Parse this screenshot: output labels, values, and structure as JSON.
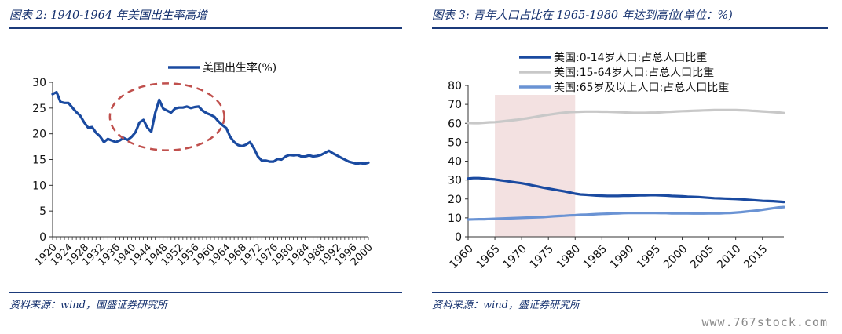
{
  "panels": [
    {
      "title": "图表 2:  1940-1964 年美国出生率高增",
      "source": "资料来源：wind，国盛证券研究所"
    },
    {
      "title": "图表 3:  青年人口占比在 1965-1980 年达到高位(单位：%)",
      "source": "资料来源：wind，盛证券研究所"
    }
  ],
  "watermark": "www.767stock.com",
  "chart_data": [
    {
      "type": "line",
      "title": "",
      "xlabel": "",
      "ylabel": "",
      "xlim": [
        1920,
        2000
      ],
      "ylim": [
        0,
        30
      ],
      "yticks": [
        0,
        5,
        10,
        15,
        20,
        25,
        30
      ],
      "xticks": [
        1920,
        1924,
        1928,
        1932,
        1936,
        1940,
        1944,
        1948,
        1952,
        1956,
        1960,
        1964,
        1968,
        1972,
        1976,
        1980,
        1984,
        1988,
        1992,
        1996,
        2000
      ],
      "legend_position": "top-center",
      "annotation": "dashed red ellipse highlighting 1940-1964",
      "series": [
        {
          "name": "美国出生率(%)",
          "color": "#1a4aa0",
          "x": [
            1920,
            1921,
            1922,
            1923,
            1924,
            1925,
            1926,
            1927,
            1928,
            1929,
            1930,
            1931,
            1932,
            1933,
            1934,
            1935,
            1936,
            1937,
            1938,
            1939,
            1940,
            1941,
            1942,
            1943,
            1944,
            1945,
            1946,
            1947,
            1948,
            1949,
            1950,
            1951,
            1952,
            1953,
            1954,
            1955,
            1956,
            1957,
            1958,
            1959,
            1960,
            1961,
            1962,
            1963,
            1964,
            1965,
            1966,
            1967,
            1968,
            1969,
            1970,
            1971,
            1972,
            1973,
            1974,
            1975,
            1976,
            1977,
            1978,
            1979,
            1980,
            1981,
            1982,
            1983,
            1984,
            1985,
            1986,
            1987,
            1988,
            1989,
            1990,
            1991,
            1992,
            1993,
            1994,
            1995,
            1996,
            1997,
            1998,
            1999,
            2000
          ],
          "values": [
            27.7,
            28.1,
            26.2,
            26.0,
            26.0,
            25.1,
            24.2,
            23.5,
            22.2,
            21.2,
            21.3,
            20.2,
            19.5,
            18.4,
            19.0,
            18.7,
            18.4,
            18.7,
            19.2,
            18.8,
            19.4,
            20.3,
            22.2,
            22.7,
            21.2,
            20.4,
            24.1,
            26.6,
            24.9,
            24.5,
            24.1,
            24.9,
            25.1,
            25.1,
            25.3,
            25.0,
            25.2,
            25.3,
            24.5,
            24.0,
            23.7,
            23.3,
            22.4,
            21.7,
            21.1,
            19.4,
            18.4,
            17.8,
            17.6,
            17.9,
            18.4,
            17.2,
            15.6,
            14.8,
            14.8,
            14.6,
            14.6,
            15.1,
            15.0,
            15.6,
            15.9,
            15.8,
            15.9,
            15.6,
            15.6,
            15.8,
            15.6,
            15.7,
            15.9,
            16.3,
            16.7,
            16.2,
            15.8,
            15.4,
            15.0,
            14.6,
            14.4,
            14.2,
            14.3,
            14.2,
            14.4
          ]
        }
      ]
    },
    {
      "type": "line",
      "title": "",
      "xlabel": "",
      "ylabel": "",
      "xlim": [
        1960,
        2019
      ],
      "ylim": [
        0,
        80
      ],
      "yticks": [
        0,
        10,
        20,
        30,
        40,
        50,
        60,
        70,
        80
      ],
      "xticks": [
        1960,
        1965,
        1970,
        1975,
        1980,
        1985,
        1990,
        1995,
        2000,
        2005,
        2010,
        2015
      ],
      "legend_position": "top-left",
      "highlight_region": [
        1965,
        1980
      ],
      "highlight_color": "#f3e1e1",
      "series": [
        {
          "name": "美国:0-14岁人口:占总人口比重",
          "color": "#1a4aa0",
          "x": [
            1960,
            1961,
            1962,
            1963,
            1964,
            1965,
            1966,
            1967,
            1968,
            1969,
            1970,
            1971,
            1972,
            1973,
            1974,
            1975,
            1976,
            1977,
            1978,
            1979,
            1980,
            1981,
            1982,
            1983,
            1984,
            1985,
            1986,
            1987,
            1988,
            1989,
            1990,
            1991,
            1992,
            1993,
            1994,
            1995,
            1996,
            1997,
            1998,
            1999,
            2000,
            2001,
            2002,
            2003,
            2004,
            2005,
            2006,
            2007,
            2008,
            2009,
            2010,
            2011,
            2012,
            2013,
            2014,
            2015,
            2016,
            2017,
            2018,
            2019
          ],
          "values": [
            30.8,
            31.0,
            31.0,
            30.8,
            30.5,
            30.3,
            29.9,
            29.5,
            29.1,
            28.7,
            28.3,
            27.8,
            27.2,
            26.6,
            26.0,
            25.5,
            25.0,
            24.5,
            24.0,
            23.4,
            22.8,
            22.4,
            22.2,
            22.0,
            21.8,
            21.7,
            21.6,
            21.6,
            21.6,
            21.7,
            21.7,
            21.8,
            21.9,
            21.9,
            22.0,
            22.0,
            21.9,
            21.8,
            21.6,
            21.5,
            21.4,
            21.2,
            21.1,
            21.0,
            20.8,
            20.6,
            20.4,
            20.3,
            20.2,
            20.1,
            20.0,
            19.8,
            19.6,
            19.4,
            19.2,
            19.0,
            18.9,
            18.8,
            18.6,
            18.4
          ]
        },
        {
          "name": "美国:15-64岁人口:占总人口比重",
          "color": "#c8c8c8",
          "x": [
            1960,
            1961,
            1962,
            1963,
            1964,
            1965,
            1966,
            1967,
            1968,
            1969,
            1970,
            1971,
            1972,
            1973,
            1974,
            1975,
            1976,
            1977,
            1978,
            1979,
            1980,
            1981,
            1982,
            1983,
            1984,
            1985,
            1986,
            1987,
            1988,
            1989,
            1990,
            1991,
            1992,
            1993,
            1994,
            1995,
            1996,
            1997,
            1998,
            1999,
            2000,
            2001,
            2002,
            2003,
            2004,
            2005,
            2006,
            2007,
            2008,
            2009,
            2010,
            2011,
            2012,
            2013,
            2014,
            2015,
            2016,
            2017,
            2018,
            2019
          ],
          "values": [
            60.2,
            60.1,
            60.1,
            60.3,
            60.5,
            60.6,
            60.9,
            61.2,
            61.5,
            61.8,
            62.2,
            62.6,
            63.1,
            63.6,
            64.1,
            64.5,
            64.9,
            65.3,
            65.6,
            65.9,
            66.0,
            66.1,
            66.2,
            66.2,
            66.2,
            66.1,
            66.1,
            66.0,
            65.9,
            65.8,
            65.6,
            65.5,
            65.5,
            65.5,
            65.6,
            65.6,
            65.8,
            66.0,
            66.1,
            66.3,
            66.4,
            66.5,
            66.6,
            66.7,
            66.8,
            66.9,
            67.0,
            67.0,
            67.0,
            67.0,
            67.0,
            66.9,
            66.8,
            66.6,
            66.5,
            66.3,
            66.1,
            65.9,
            65.7,
            65.4
          ]
        },
        {
          "name": "美国:65岁及以上人口:占总人口比重",
          "color": "#6a93d4",
          "x": [
            1960,
            1961,
            1962,
            1963,
            1964,
            1965,
            1966,
            1967,
            1968,
            1969,
            1970,
            1971,
            1972,
            1973,
            1974,
            1975,
            1976,
            1977,
            1978,
            1979,
            1980,
            1981,
            1982,
            1983,
            1984,
            1985,
            1986,
            1987,
            1988,
            1989,
            1990,
            1991,
            1992,
            1993,
            1994,
            1995,
            1996,
            1997,
            1998,
            1999,
            2000,
            2001,
            2002,
            2003,
            2004,
            2005,
            2006,
            2007,
            2008,
            2009,
            2010,
            2011,
            2012,
            2013,
            2014,
            2015,
            2016,
            2017,
            2018,
            2019
          ],
          "values": [
            9.1,
            9.2,
            9.3,
            9.3,
            9.4,
            9.5,
            9.6,
            9.7,
            9.8,
            9.9,
            10.0,
            10.1,
            10.2,
            10.3,
            10.4,
            10.6,
            10.8,
            11.0,
            11.1,
            11.3,
            11.4,
            11.6,
            11.7,
            11.8,
            12.0,
            12.1,
            12.2,
            12.3,
            12.4,
            12.5,
            12.6,
            12.6,
            12.6,
            12.6,
            12.6,
            12.6,
            12.5,
            12.5,
            12.4,
            12.4,
            12.4,
            12.4,
            12.3,
            12.3,
            12.3,
            12.4,
            12.4,
            12.4,
            12.5,
            12.6,
            12.8,
            13.0,
            13.3,
            13.6,
            13.9,
            14.3,
            14.7,
            15.1,
            15.5,
            15.7
          ]
        }
      ]
    }
  ]
}
